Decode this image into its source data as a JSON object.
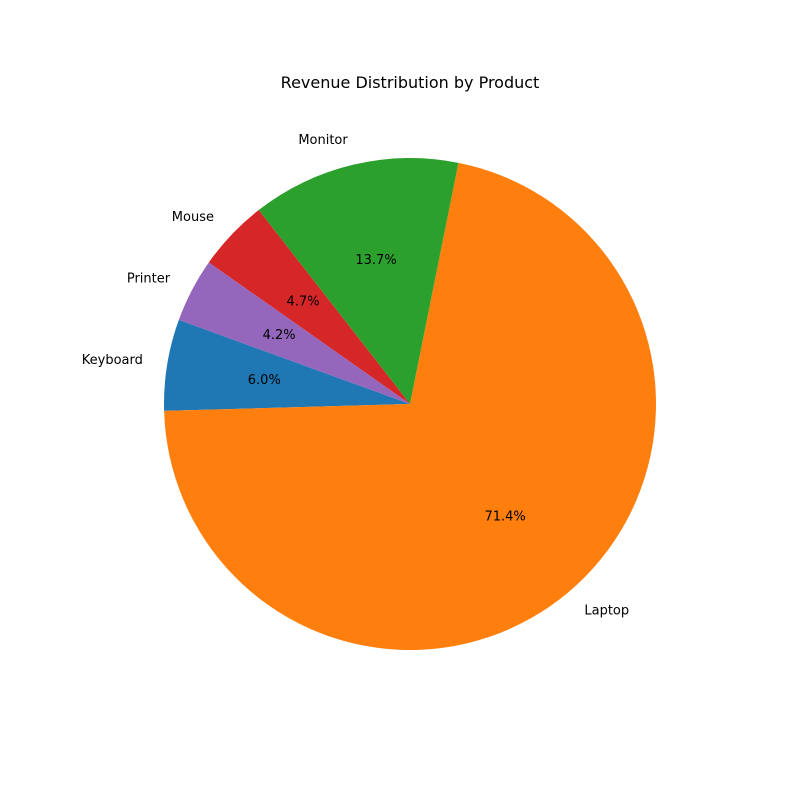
{
  "chart_data": {
    "type": "pie",
    "title": "Revenue Distribution by Product",
    "labels": [
      "Keyboard",
      "Laptop",
      "Monitor",
      "Mouse",
      "Printer"
    ],
    "values": [
      6.0,
      71.4,
      13.7,
      4.7,
      4.2
    ],
    "percent_labels": [
      "6.0%",
      "71.4%",
      "13.7%",
      "4.7%",
      "4.2%"
    ],
    "colors": [
      "#1f77b4",
      "#ff7f0e",
      "#2ca02c",
      "#d62728",
      "#9467bd"
    ],
    "start_angle_deg": 160,
    "direction": "counterclockwise"
  }
}
